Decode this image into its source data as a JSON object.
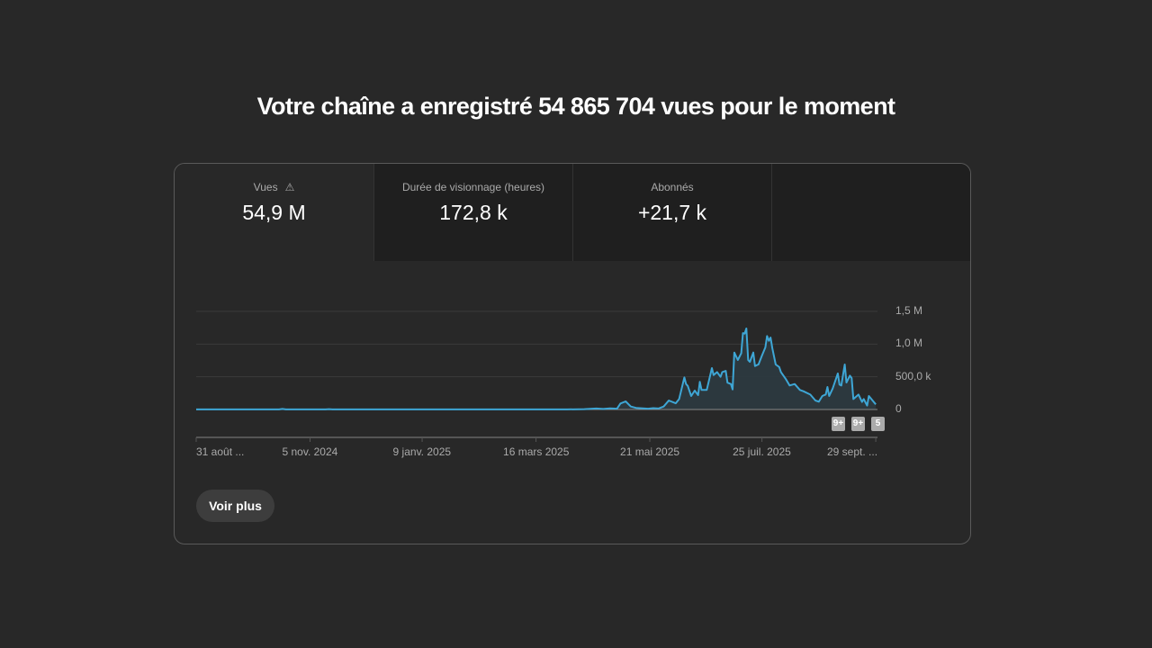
{
  "title": "Votre chaîne a enregistré 54 865 704 vues pour le moment",
  "tabs": [
    {
      "label": "Vues",
      "value": "54,9 M",
      "icon": "warning-icon",
      "selected": true
    },
    {
      "label": "Durée de visionnage (heures)",
      "value": "172,8 k"
    },
    {
      "label": "Abonnés",
      "value": "+21,7 k"
    }
  ],
  "colors": {
    "line": "#3ea6d5",
    "area": "#2c3a40",
    "accent": "#aaaaaa"
  },
  "chart_data": {
    "type": "area",
    "title": "Vues",
    "x_unit": "days since 31 août 2024",
    "xlim": [
      0,
      395
    ],
    "ylim": [
      0,
      1500
    ],
    "y_unit": "thousands of views",
    "y_ticks": [
      0,
      500,
      1000,
      1500
    ],
    "y_tick_labels": [
      "0",
      "500,0 k",
      "1,0 M",
      "1,5 M"
    ],
    "x_ticks": [
      0,
      66,
      131,
      197,
      263,
      328,
      394
    ],
    "x_tick_labels": [
      "31 août ...",
      "5 nov. 2024",
      "9 janv. 2025",
      "16 mars 2025",
      "21 mai 2025",
      "25 juil. 2025",
      "29 sept. ..."
    ],
    "grid": true,
    "points": [
      [
        0,
        2
      ],
      [
        48,
        2
      ],
      [
        50,
        8
      ],
      [
        52,
        2
      ],
      [
        75,
        2
      ],
      [
        77,
        5
      ],
      [
        79,
        2
      ],
      [
        215,
        2
      ],
      [
        225,
        5
      ],
      [
        232,
        15
      ],
      [
        236,
        8
      ],
      [
        240,
        18
      ],
      [
        244,
        12
      ],
      [
        246,
        92
      ],
      [
        249,
        124
      ],
      [
        252,
        46
      ],
      [
        255,
        25
      ],
      [
        262,
        12
      ],
      [
        265,
        20
      ],
      [
        268,
        15
      ],
      [
        271,
        45
      ],
      [
        274,
        138
      ],
      [
        278,
        95
      ],
      [
        280,
        160
      ],
      [
        283,
        490
      ],
      [
        284,
        390
      ],
      [
        285,
        360
      ],
      [
        287,
        206
      ],
      [
        289,
        289
      ],
      [
        291,
        220
      ],
      [
        292,
        422
      ],
      [
        293,
        300
      ],
      [
        296,
        300
      ],
      [
        299,
        633
      ],
      [
        300,
        527
      ],
      [
        302,
        573
      ],
      [
        304,
        500
      ],
      [
        305,
        573
      ],
      [
        307,
        590
      ],
      [
        308,
        410
      ],
      [
        310,
        390
      ],
      [
        311,
        307
      ],
      [
        312,
        871
      ],
      [
        314,
        757
      ],
      [
        316,
        860
      ],
      [
        317,
        1169
      ],
      [
        318,
        1160
      ],
      [
        319,
        1238
      ],
      [
        320,
        757
      ],
      [
        321,
        730
      ],
      [
        323,
        871
      ],
      [
        324,
        665
      ],
      [
        326,
        690
      ],
      [
        328,
        825
      ],
      [
        330,
        950
      ],
      [
        331,
        1123
      ],
      [
        332,
        1050
      ],
      [
        333,
        1100
      ],
      [
        334,
        940
      ],
      [
        336,
        688
      ],
      [
        338,
        650
      ],
      [
        339,
        573
      ],
      [
        342,
        460
      ],
      [
        344,
        367
      ],
      [
        347,
        390
      ],
      [
        350,
        298
      ],
      [
        352,
        280
      ],
      [
        356,
        229
      ],
      [
        359,
        138
      ],
      [
        361,
        120
      ],
      [
        363,
        206
      ],
      [
        365,
        230
      ],
      [
        366,
        344
      ],
      [
        367,
        206
      ],
      [
        369,
        321
      ],
      [
        372,
        550
      ],
      [
        373,
        380
      ],
      [
        374,
        367
      ],
      [
        376,
        688
      ],
      [
        377,
        413
      ],
      [
        379,
        518
      ],
      [
        380,
        480
      ],
      [
        381,
        160
      ],
      [
        384,
        229
      ],
      [
        386,
        115
      ],
      [
        387,
        160
      ],
      [
        389,
        60
      ],
      [
        390,
        206
      ],
      [
        392,
        140
      ],
      [
        394,
        78
      ]
    ]
  },
  "badges": [
    "9+",
    "9+",
    "5"
  ],
  "see_more_label": "Voir plus"
}
